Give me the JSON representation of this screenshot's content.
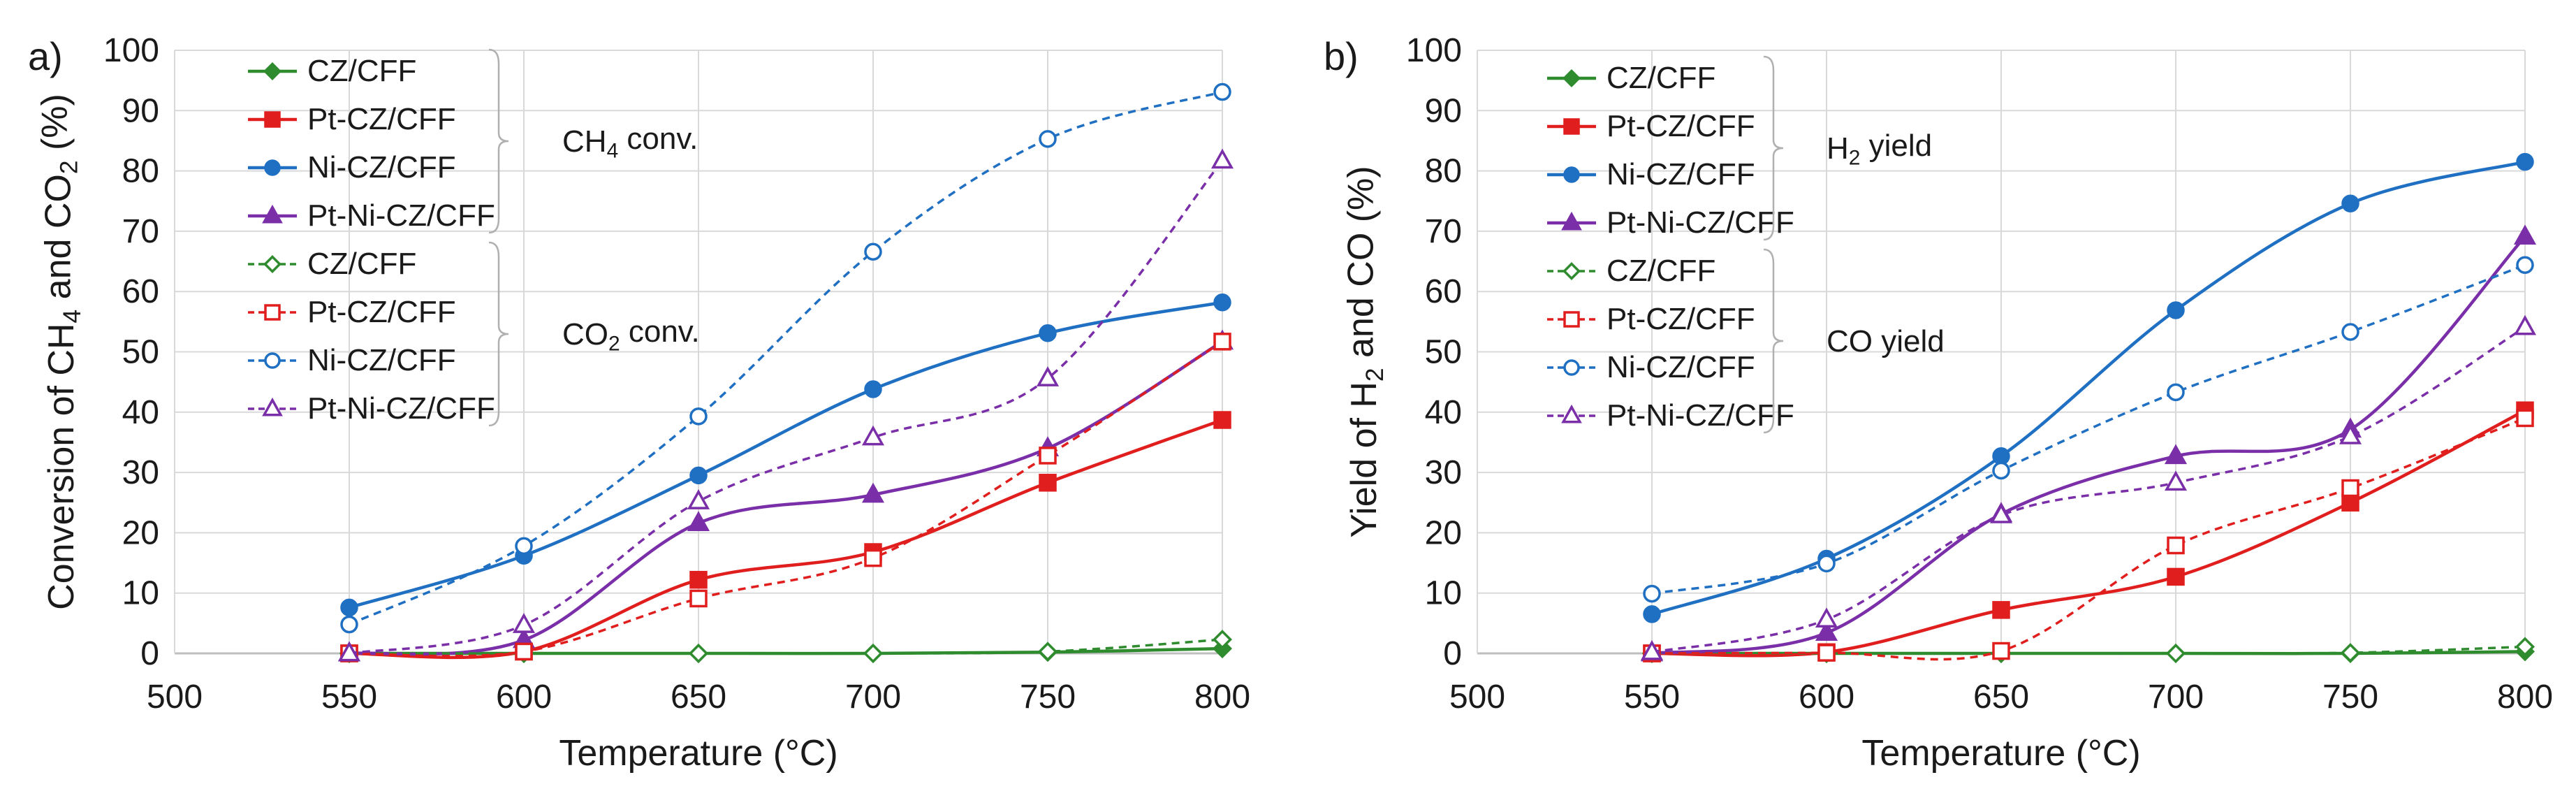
{
  "chart_data": [
    {
      "type": "line",
      "panel_label": "a)",
      "x": [
        550,
        600,
        650,
        700,
        750,
        800
      ],
      "xlim": [
        500,
        800
      ],
      "xticks": [
        500,
        550,
        600,
        650,
        700,
        750,
        800
      ],
      "ylim": [
        0,
        100
      ],
      "yticks": [
        0,
        10,
        20,
        30,
        40,
        50,
        60,
        70,
        80,
        90,
        100
      ],
      "xlabel": "Temperature (°C)",
      "ylabel_parts": [
        "Conversion of CH",
        "4",
        " and CO",
        "2",
        " (%)"
      ],
      "grid": true,
      "groups": [
        {
          "label_parts": [
            "CH",
            "4",
            " conv."
          ],
          "series_from": 0,
          "series_to": 3
        },
        {
          "label_parts": [
            "CO",
            "2",
            " conv."
          ],
          "series_from": 4,
          "series_to": 7
        }
      ],
      "series": [
        {
          "name": "CZ/CFF",
          "values": [
            0,
            0,
            0,
            0,
            0.2,
            0.8
          ],
          "color": "#2e8b2e",
          "dashed": false,
          "marker": "diamond",
          "filled": true
        },
        {
          "name": "Pt-CZ/CFF",
          "values": [
            0,
            0.3,
            12.2,
            16.8,
            28.3,
            38.7
          ],
          "color": "#e01e1e",
          "dashed": false,
          "marker": "square",
          "filled": true
        },
        {
          "name": "Ni-CZ/CFF",
          "values": [
            7.6,
            16.2,
            29.5,
            43.8,
            53.1,
            58.2
          ],
          "color": "#1f6fc2",
          "dashed": false,
          "marker": "circle",
          "filled": true
        },
        {
          "name": "Pt-Ni-CZ/CFF",
          "values": [
            0,
            2.2,
            21.6,
            26.3,
            34,
            51.7
          ],
          "color": "#7a2fa8",
          "dashed": false,
          "marker": "triangle",
          "filled": true
        },
        {
          "name": "CZ/CFF",
          "values": [
            0,
            0,
            0,
            0,
            0.3,
            2.3
          ],
          "color": "#2e8b2e",
          "dashed": true,
          "marker": "diamond",
          "filled": false
        },
        {
          "name": "Pt-CZ/CFF",
          "values": [
            0,
            0.3,
            9.1,
            15.8,
            32.8,
            51.7
          ],
          "color": "#e01e1e",
          "dashed": true,
          "marker": "square",
          "filled": false
        },
        {
          "name": "Ni-CZ/CFF",
          "values": [
            4.8,
            17.8,
            39.3,
            66.6,
            85.3,
            93.1
          ],
          "color": "#1f6fc2",
          "dashed": true,
          "marker": "circle",
          "filled": false
        },
        {
          "name": "Pt-Ni-CZ/CFF",
          "values": [
            0,
            4.7,
            25.2,
            35.8,
            45.6,
            81.7
          ],
          "color": "#7a2fa8",
          "dashed": true,
          "marker": "triangle",
          "filled": false
        }
      ]
    },
    {
      "type": "line",
      "panel_label": "b)",
      "x": [
        550,
        600,
        650,
        700,
        750,
        800
      ],
      "xlim": [
        500,
        800
      ],
      "xticks": [
        500,
        550,
        600,
        650,
        700,
        750,
        800
      ],
      "ylim": [
        0,
        100
      ],
      "yticks": [
        0,
        10,
        20,
        30,
        40,
        50,
        60,
        70,
        80,
        90,
        100
      ],
      "xlabel": "Temperature (°C)",
      "ylabel_parts": [
        "Yield of H",
        "2",
        " and CO (%)"
      ],
      "grid": true,
      "groups": [
        {
          "label_parts": [
            "H",
            "2",
            " yield"
          ],
          "series_from": 0,
          "series_to": 3
        },
        {
          "label_parts": [
            "CO yield"
          ],
          "series_from": 4,
          "series_to": 7
        }
      ],
      "series": [
        {
          "name": "CZ/CFF",
          "values": [
            0,
            0,
            0,
            0,
            0,
            0.3
          ],
          "color": "#2e8b2e",
          "dashed": false,
          "marker": "diamond",
          "filled": true
        },
        {
          "name": "Pt-CZ/CFF",
          "values": [
            0,
            0.2,
            7.2,
            12.7,
            25,
            40.3
          ],
          "color": "#e01e1e",
          "dashed": false,
          "marker": "square",
          "filled": true
        },
        {
          "name": "Ni-CZ/CFF",
          "values": [
            6.5,
            15.7,
            32.7,
            56.9,
            74.6,
            81.5
          ],
          "color": "#1f6fc2",
          "dashed": false,
          "marker": "circle",
          "filled": true
        },
        {
          "name": "Pt-Ni-CZ/CFF",
          "values": [
            0,
            3.4,
            23.1,
            32.7,
            37.1,
            69.1
          ],
          "color": "#7a2fa8",
          "dashed": false,
          "marker": "triangle",
          "filled": true
        },
        {
          "name": "CZ/CFF",
          "values": [
            0,
            0,
            0,
            0,
            0.1,
            1.1
          ],
          "color": "#2e8b2e",
          "dashed": true,
          "marker": "diamond",
          "filled": false
        },
        {
          "name": "Pt-CZ/CFF",
          "values": [
            0,
            0.1,
            0.4,
            17.9,
            27.4,
            39
          ],
          "color": "#e01e1e",
          "dashed": true,
          "marker": "square",
          "filled": false
        },
        {
          "name": "Ni-CZ/CFF",
          "values": [
            9.9,
            14.9,
            30.3,
            43.3,
            53.3,
            64.4
          ],
          "color": "#1f6fc2",
          "dashed": true,
          "marker": "circle",
          "filled": false
        },
        {
          "name": "Pt-Ni-CZ/CFF",
          "values": [
            0.2,
            5.6,
            22.9,
            28.3,
            36,
            54.1
          ],
          "color": "#7a2fa8",
          "dashed": true,
          "marker": "triangle",
          "filled": false
        }
      ]
    }
  ]
}
